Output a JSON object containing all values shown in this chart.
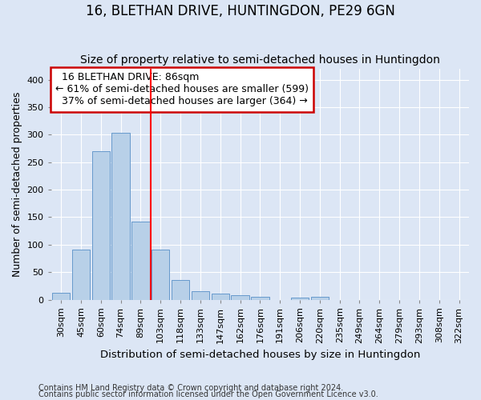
{
  "title": "16, BLETHAN DRIVE, HUNTINGDON, PE29 6GN",
  "subtitle": "Size of property relative to semi-detached houses in Huntingdon",
  "xlabel": "Distribution of semi-detached houses by size in Huntingdon",
  "ylabel": "Number of semi-detached properties",
  "footnote1": "Contains HM Land Registry data © Crown copyright and database right 2024.",
  "footnote2": "Contains public sector information licensed under the Open Government Licence v3.0.",
  "categories": [
    "30sqm",
    "45sqm",
    "60sqm",
    "74sqm",
    "89sqm",
    "103sqm",
    "118sqm",
    "133sqm",
    "147sqm",
    "162sqm",
    "176sqm",
    "191sqm",
    "206sqm",
    "220sqm",
    "235sqm",
    "249sqm",
    "264sqm",
    "279sqm",
    "293sqm",
    "308sqm",
    "322sqm"
  ],
  "values": [
    13,
    91,
    270,
    303,
    142,
    91,
    35,
    15,
    11,
    8,
    5,
    0,
    4,
    5,
    0,
    0,
    0,
    0,
    0,
    0,
    0
  ],
  "bar_color": "#b8d0e8",
  "bar_edgecolor": "#6699cc",
  "property_bin_index": 4,
  "red_line_label": "16 BLETHAN DRIVE: 86sqm",
  "smaller_pct": 61,
  "smaller_count": 599,
  "larger_pct": 37,
  "larger_count": 364,
  "annotation_box_color": "#ffffff",
  "annotation_box_edgecolor": "#cc0000",
  "ylim": [
    0,
    420
  ],
  "yticks": [
    0,
    50,
    100,
    150,
    200,
    250,
    300,
    350,
    400
  ],
  "bg_color": "#dce6f5",
  "grid_color": "#ffffff",
  "title_fontsize": 12,
  "subtitle_fontsize": 10,
  "axis_label_fontsize": 9,
  "tick_fontsize": 8,
  "annotation_fontsize": 9
}
